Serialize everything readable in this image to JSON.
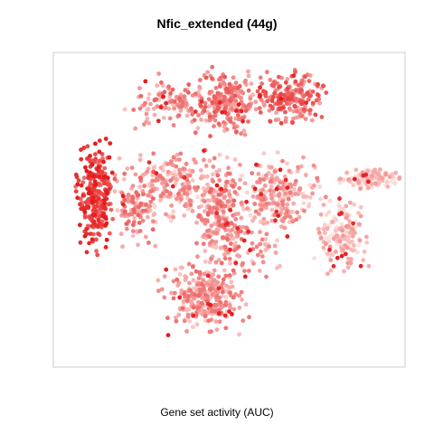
{
  "chart_data": {
    "type": "scatter",
    "title": "Nfic_extended (44g)",
    "xlabel": "",
    "ylabel": "",
    "color_label": "Gene set activity (AUC)",
    "axes": "none",
    "grid": false,
    "legend": "none",
    "frame_color": "#cccccc",
    "color_scale": {
      "low": "#fde2df",
      "high": "#e41a1c"
    },
    "point_count": 2200,
    "seed": 7
  }
}
